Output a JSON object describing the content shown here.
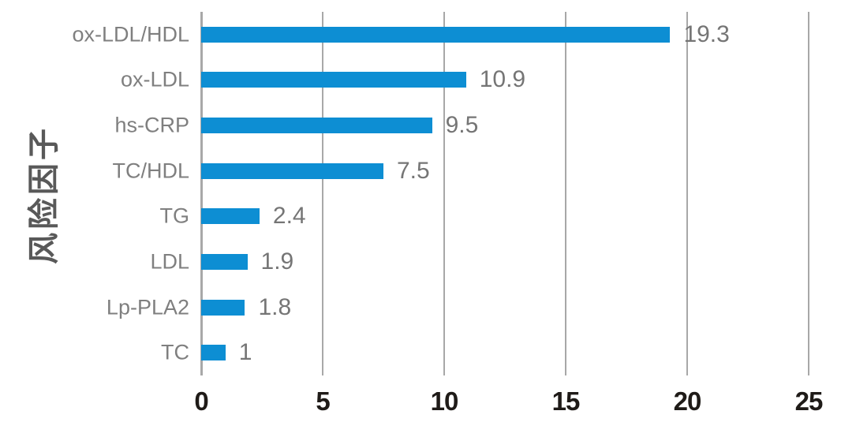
{
  "chart_data": {
    "type": "bar",
    "orientation": "horizontal",
    "title": "",
    "xlabel": "",
    "ylabel": "风险因子",
    "categories": [
      "ox-LDL/HDL",
      "ox-LDL",
      "hs-CRP",
      "TC/HDL",
      "TG",
      "LDL",
      "Lp-PLA2",
      "TC"
    ],
    "values": [
      19.3,
      10.9,
      9.5,
      7.5,
      2.4,
      1.9,
      1.8,
      1
    ],
    "value_labels": [
      "19.3",
      "10.9",
      "9.5",
      "7.5",
      "2.4",
      "1.9",
      "1.8",
      "1"
    ],
    "xlim": [
      0,
      25
    ],
    "x_ticks": [
      0,
      5,
      10,
      15,
      20,
      25
    ],
    "grid": true,
    "legend": false,
    "colors": {
      "bar": "#0d8ed3",
      "gridline": "#a8a8a8",
      "category_label": "#7f7f7f",
      "value_label": "#757575",
      "tick_label": "#1f1b18",
      "axis_title": "#595959",
      "background": "#ffffff"
    }
  }
}
